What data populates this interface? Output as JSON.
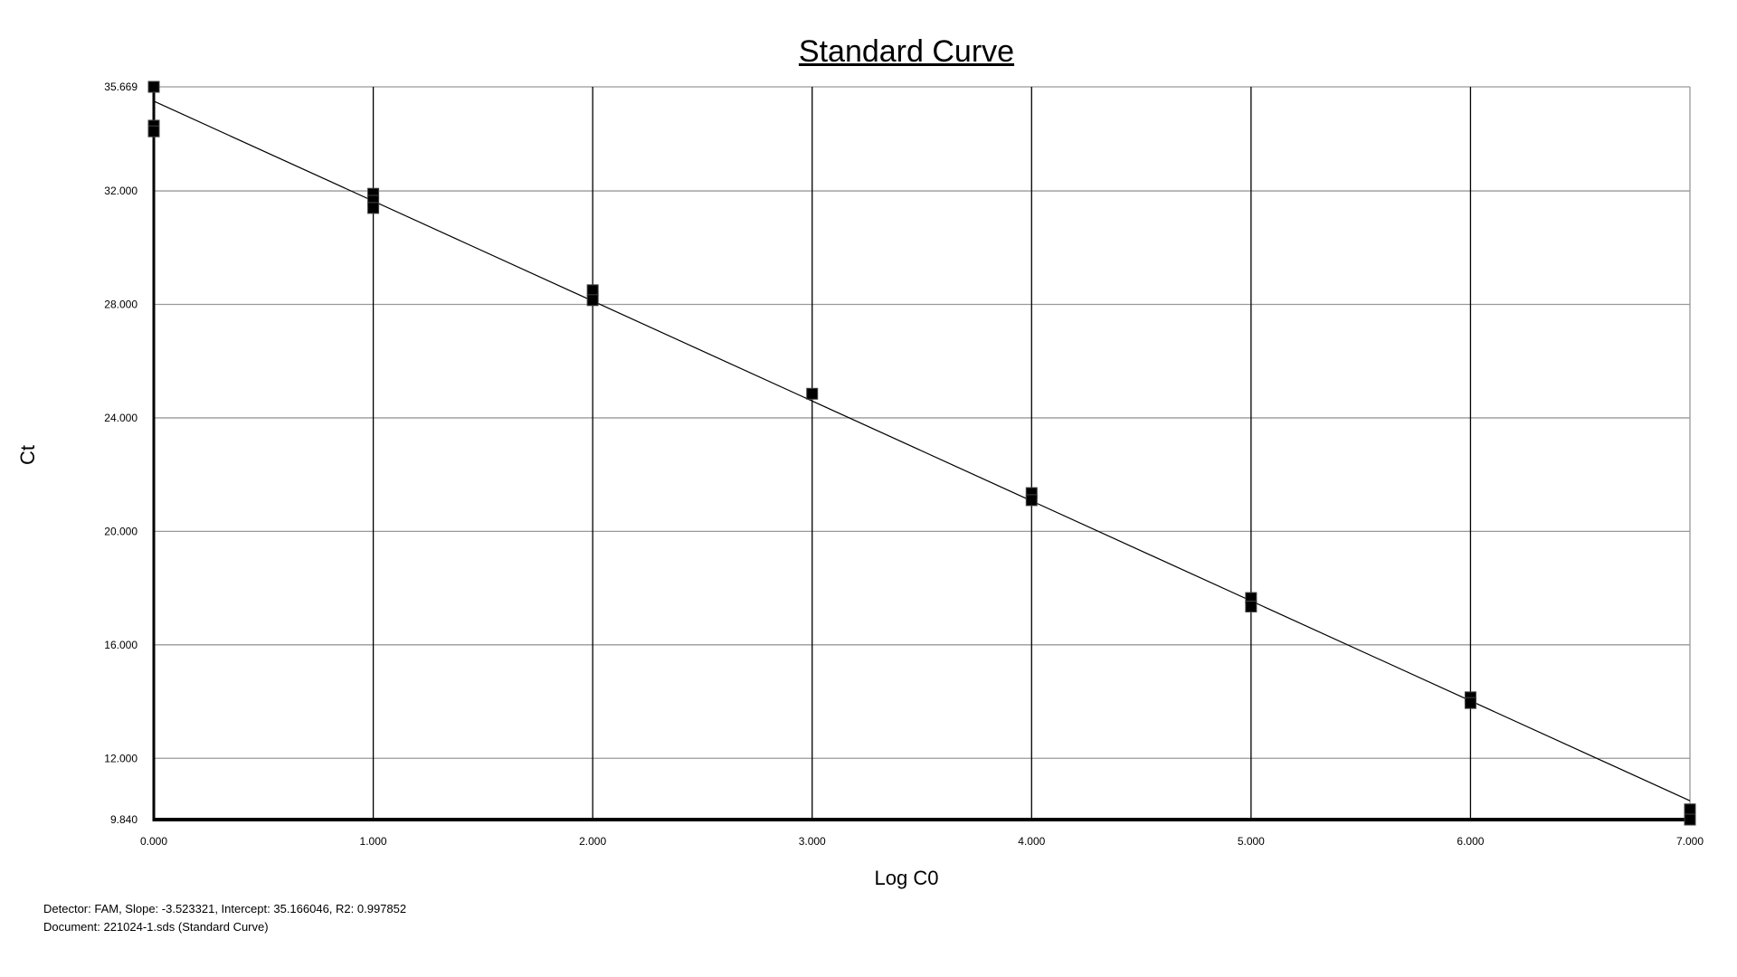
{
  "chart_data": {
    "type": "scatter",
    "title": "Standard Curve",
    "xlabel": "Log C0",
    "ylabel": "Ct",
    "xlim": [
      0,
      7
    ],
    "ylim": [
      9.84,
      35.669
    ],
    "x_ticks": [
      "0.000",
      "1.000",
      "2.000",
      "3.000",
      "4.000",
      "5.000",
      "6.000",
      "7.000"
    ],
    "y_ticks": [
      "9.840",
      "12.000",
      "16.000",
      "20.000",
      "24.000",
      "28.000",
      "32.000",
      "35.669"
    ],
    "y_tick_values": [
      9.84,
      12,
      16,
      20,
      24,
      28,
      32,
      35.669
    ],
    "grid": true,
    "points": [
      {
        "x": 0,
        "y": 35.669
      },
      {
        "x": 0,
        "y": 34.3
      },
      {
        "x": 0,
        "y": 34.1
      },
      {
        "x": 1,
        "y": 31.9
      },
      {
        "x": 1,
        "y": 31.65
      },
      {
        "x": 1,
        "y": 31.4
      },
      {
        "x": 2,
        "y": 28.5
      },
      {
        "x": 2,
        "y": 28.15
      },
      {
        "x": 3,
        "y": 24.85
      },
      {
        "x": 4,
        "y": 21.35
      },
      {
        "x": 4,
        "y": 21.1
      },
      {
        "x": 5,
        "y": 17.65
      },
      {
        "x": 5,
        "y": 17.35
      },
      {
        "x": 6,
        "y": 14.15
      },
      {
        "x": 6,
        "y": 13.95
      },
      {
        "x": 7,
        "y": 10.2
      },
      {
        "x": 7,
        "y": 9.84
      }
    ],
    "fit": {
      "slope": -3.523321,
      "intercept": 35.166046
    },
    "marker_color": "#000000"
  },
  "footer": {
    "stats": "Detector: FAM, Slope:  -3.523321, Intercept:  35.166046, R2:  0.997852",
    "document": "Document: 221024-1.sds (Standard Curve)"
  }
}
